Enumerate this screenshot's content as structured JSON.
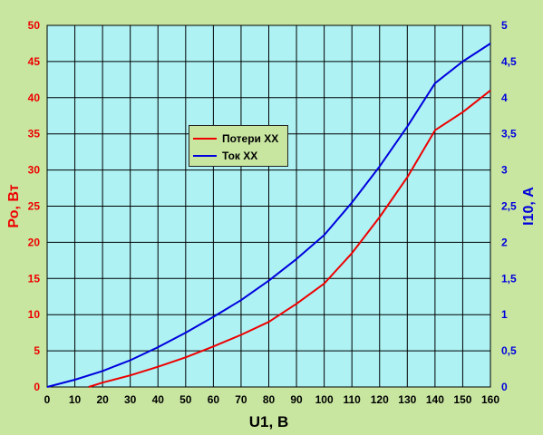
{
  "chart_data": {
    "type": "line",
    "x": [
      0,
      10,
      20,
      30,
      40,
      50,
      60,
      70,
      80,
      90,
      100,
      110,
      120,
      130,
      140,
      150,
      160
    ],
    "xlim": [
      0,
      160
    ],
    "x_ticks": [
      0,
      10,
      20,
      30,
      40,
      50,
      60,
      70,
      80,
      90,
      100,
      110,
      120,
      130,
      140,
      150,
      160
    ],
    "xlabel": "U1, В",
    "ylabel_left": "Ро, Вт",
    "ylabel_right": "I10, А",
    "ylim_left": [
      0,
      50
    ],
    "ylim_right": [
      0,
      5
    ],
    "y_ticks_left": [
      "0",
      "5",
      "10",
      "15",
      "20",
      "25",
      "30",
      "35",
      "40",
      "45",
      "50"
    ],
    "y_ticks_right": [
      "0",
      "0,5",
      "1",
      "1,5",
      "2",
      "2,5",
      "3",
      "3,5",
      "4",
      "4,5",
      "5"
    ],
    "grid": true,
    "legend_position": "upper-center-left",
    "series": [
      {
        "name": "Потери ХХ",
        "axis": "left",
        "color": "#ee0000",
        "x": [
          15,
          20,
          30,
          40,
          50,
          60,
          70,
          80,
          90,
          100,
          110,
          120,
          130,
          140,
          150,
          160
        ],
        "values": [
          0,
          0.6,
          1.6,
          2.8,
          4.1,
          5.6,
          7.2,
          9.0,
          11.5,
          14.3,
          18.5,
          23.5,
          29.0,
          35.5,
          38.0,
          41.0
        ]
      },
      {
        "name": "Ток ХХ",
        "axis": "right",
        "color": "#0000dd",
        "x": [
          0,
          10,
          20,
          30,
          40,
          50,
          60,
          70,
          80,
          90,
          100,
          110,
          120,
          130,
          140,
          150,
          160
        ],
        "values": [
          0,
          0.1,
          0.22,
          0.37,
          0.55,
          0.75,
          0.97,
          1.2,
          1.47,
          1.77,
          2.1,
          2.55,
          3.05,
          3.6,
          4.2,
          4.5,
          4.75
        ]
      }
    ]
  },
  "colors": {
    "page_background": "#c8e6a0",
    "plot_background": "#aef2f4",
    "left_axis": "#ee0000",
    "right_axis": "#0000dd",
    "x_axis": "#000000"
  }
}
